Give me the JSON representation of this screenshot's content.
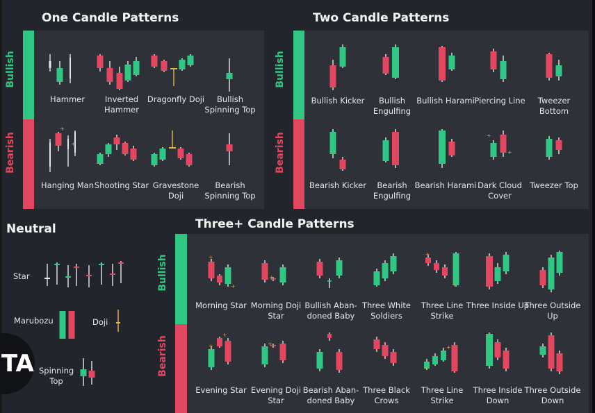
{
  "colors": {
    "bull": "#2fc783",
    "bear": "#e2475f",
    "bg": "#22252b",
    "panel": "#2e3137",
    "wick": "#e6e6e6",
    "dot": "#f0a020",
    "doji": "#e5b843"
  },
  "sections": {
    "one": {
      "title": "One Candle Patterns"
    },
    "two": {
      "title": "Two Candle Patterns"
    },
    "three": {
      "title": "Three+ Candle Patterns"
    },
    "neutral": {
      "title": "Neutral"
    }
  },
  "side_labels": {
    "bullish": "Bullish",
    "bearish": "Bearish"
  },
  "one_candle": [
    {
      "label": "Hammer"
    },
    {
      "label": "Inverted Hammer"
    },
    {
      "label": "Dragonfly Doji"
    },
    {
      "label": "Bullish Spinning Top"
    },
    {
      "label": "Hanging Man"
    },
    {
      "label": "Shooting Star"
    },
    {
      "label": "Gravestone Doji"
    },
    {
      "label": "Bearish Spinning Top"
    }
  ],
  "two_candle": [
    {
      "label": "Bullish Kicker"
    },
    {
      "label": "Bullish Engulfing"
    },
    {
      "label": "Bullish Harami"
    },
    {
      "label": "Piercing Line"
    },
    {
      "label": "Tweezer Bottom"
    },
    {
      "label": "Bearish Kicker"
    },
    {
      "label": "Bearish Engulfing"
    },
    {
      "label": "Bearish Harami"
    },
    {
      "label": "Dark Cloud Cover"
    },
    {
      "label": "Tweezer Top"
    }
  ],
  "three_candle": [
    {
      "label": "Morning Star"
    },
    {
      "label": "Morning Doji Star"
    },
    {
      "label": "Bullish Aban- doned Baby"
    },
    {
      "label": "Three White Soldiers"
    },
    {
      "label": "Three Line Strike"
    },
    {
      "label": "Three Inside Up"
    },
    {
      "label": "Three Outside Up"
    },
    {
      "label": "Evening Star"
    },
    {
      "label": "Evening Doji Star"
    },
    {
      "label": "Bearish Aban- doned Baby"
    },
    {
      "label": "Three Black Crows"
    },
    {
      "label": "Three Line Strike"
    },
    {
      "label": "Three Inside Down"
    },
    {
      "label": "Three Outside Down"
    }
  ],
  "neutral": {
    "star": "Star",
    "marubozu": "Marubozu",
    "doji": "Doji",
    "spinning_top": "Spinning Top"
  },
  "logo": {
    "text": "TA"
  }
}
